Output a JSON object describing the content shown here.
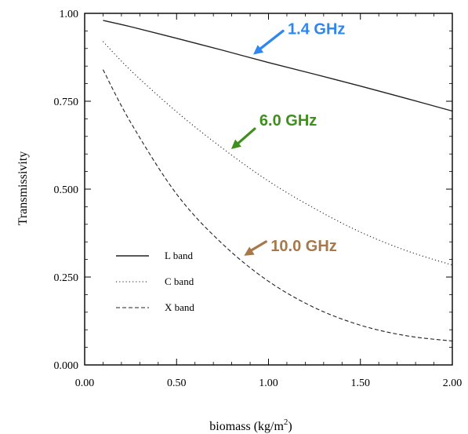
{
  "chart_data": {
    "type": "line",
    "xlabel": "biomass (kg/m",
    "xlabel_sup": "2",
    "xlabel_tail": ")",
    "ylabel": "Transmissivity",
    "xlim": [
      0.0,
      2.0
    ],
    "ylim": [
      0.0,
      1.0
    ],
    "x_ticks": [
      "0.00",
      "0.50",
      "1.00",
      "1.50",
      "2.00"
    ],
    "y_ticks": [
      "0.000",
      "0.250",
      "0.500",
      "0.750",
      "1.00"
    ],
    "x_tick_values": [
      0.0,
      0.5,
      1.0,
      1.5,
      2.0
    ],
    "y_tick_values": [
      0.0,
      0.25,
      0.5,
      0.75,
      1.0
    ],
    "legend_position": "lower-left",
    "grid": false,
    "series": [
      {
        "name": "L band",
        "style": "solid",
        "x": [
          0.1,
          0.25,
          0.5,
          0.75,
          1.0,
          1.25,
          1.5,
          1.75,
          2.0
        ],
        "y": [
          0.98,
          0.962,
          0.929,
          0.895,
          0.86,
          0.827,
          0.793,
          0.758,
          0.722
        ]
      },
      {
        "name": "C band",
        "style": "dotted",
        "x": [
          0.1,
          0.25,
          0.5,
          0.75,
          1.0,
          1.25,
          1.5,
          1.75,
          2.0
        ],
        "y": [
          0.92,
          0.838,
          0.72,
          0.616,
          0.523,
          0.445,
          0.378,
          0.325,
          0.284
        ]
      },
      {
        "name": "X band",
        "style": "dashed",
        "x": [
          0.1,
          0.25,
          0.5,
          0.75,
          1.0,
          1.25,
          1.5,
          1.75,
          2.0
        ],
        "y": [
          0.84,
          0.69,
          0.486,
          0.344,
          0.238,
          0.163,
          0.113,
          0.083,
          0.068
        ]
      }
    ],
    "annotations": [
      {
        "text": "1.4 GHz",
        "color": "#2e86ef",
        "series": "L band",
        "at_x": 0.9
      },
      {
        "text": "6.0 GHz",
        "color": "#3f8f1f",
        "series": "C band",
        "at_x": 0.78
      },
      {
        "text": "10.0 GHz",
        "color": "#a6784a",
        "series": "X band",
        "at_x": 0.85
      }
    ]
  }
}
